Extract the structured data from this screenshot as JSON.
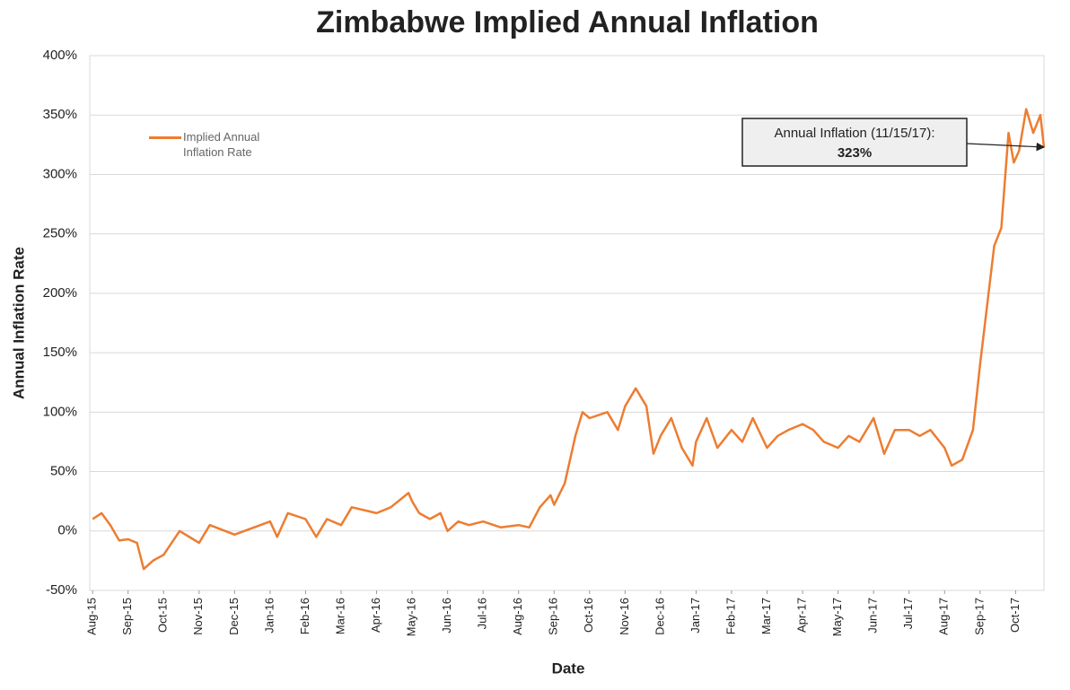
{
  "chart_data": {
    "type": "line",
    "title": "Zimbabwe Implied Annual Inflation",
    "x_label": "Date",
    "y_label": "Annual Inflation Rate",
    "xlim": [
      -0.08,
      26.8
    ],
    "ylim": [
      -50,
      400
    ],
    "xticks": [
      {
        "value": 0,
        "label": "Aug-15"
      },
      {
        "value": 1,
        "label": "Sep-15"
      },
      {
        "value": 2,
        "label": "Oct-15"
      },
      {
        "value": 3,
        "label": "Nov-15"
      },
      {
        "value": 4,
        "label": "Dec-15"
      },
      {
        "value": 5,
        "label": "Jan-16"
      },
      {
        "value": 6,
        "label": "Feb-16"
      },
      {
        "value": 7,
        "label": "Mar-16"
      },
      {
        "value": 8,
        "label": "Apr-16"
      },
      {
        "value": 9,
        "label": "May-16"
      },
      {
        "value": 10,
        "label": "Jun-16"
      },
      {
        "value": 11,
        "label": "Jul-16"
      },
      {
        "value": 12,
        "label": "Aug-16"
      },
      {
        "value": 13,
        "label": "Sep-16"
      },
      {
        "value": 14,
        "label": "Oct-16"
      },
      {
        "value": 15,
        "label": "Nov-16"
      },
      {
        "value": 16,
        "label": "Dec-16"
      },
      {
        "value": 17,
        "label": "Jan-17"
      },
      {
        "value": 18,
        "label": "Feb-17"
      },
      {
        "value": 19,
        "label": "Mar-17"
      },
      {
        "value": 20,
        "label": "Apr-17"
      },
      {
        "value": 21,
        "label": "May-17"
      },
      {
        "value": 22,
        "label": "Jun-17"
      },
      {
        "value": 23,
        "label": "Jul-17"
      },
      {
        "value": 24,
        "label": "Aug-17"
      },
      {
        "value": 25,
        "label": "Sep-17"
      },
      {
        "value": 26,
        "label": "Oct-17"
      }
    ],
    "yticks": [
      {
        "value": -50,
        "label": "-50%"
      },
      {
        "value": 0,
        "label": "0%"
      },
      {
        "value": 50,
        "label": "50%"
      },
      {
        "value": 100,
        "label": "100%"
      },
      {
        "value": 150,
        "label": "150%"
      },
      {
        "value": 200,
        "label": "200%"
      },
      {
        "value": 250,
        "label": "250%"
      },
      {
        "value": 300,
        "label": "300%"
      },
      {
        "value": 350,
        "label": "350%"
      },
      {
        "value": 400,
        "label": "400%"
      }
    ],
    "grid": true,
    "legend": "upper left",
    "x": [
      0,
      0.25,
      0.5,
      0.75,
      1,
      1.25,
      1.44,
      1.7,
      2,
      2.45,
      3,
      3.3,
      4,
      5,
      5.2,
      5.5,
      6,
      6.3,
      6.6,
      7,
      7.3,
      8,
      8.4,
      8.9,
      9,
      9.2,
      9.5,
      9.8,
      10,
      10.3,
      10.6,
      11,
      11.5,
      12,
      12.3,
      12.6,
      12.9,
      13,
      13.3,
      13.6,
      13.8,
      14,
      14.5,
      14.8,
      15,
      15.3,
      15.6,
      15.8,
      16,
      16.3,
      16.6,
      16.9,
      17,
      17.3,
      17.6,
      18,
      18.3,
      18.6,
      19,
      19.3,
      19.6,
      20,
      20.3,
      20.6,
      21,
      21.3,
      21.6,
      22,
      22.3,
      22.6,
      23,
      23.3,
      23.6,
      24,
      24.2,
      24.5,
      24.8,
      25,
      25.2,
      25.4,
      25.6,
      25.8,
      25.95,
      26.1,
      26.3,
      26.5,
      26.7,
      26.8
    ],
    "series": [
      {
        "name": "Implied Annual Inflation Rate",
        "color": "#ed7d31",
        "values": [
          10,
          15,
          5,
          -8,
          -7,
          -10,
          -32,
          -25,
          -20,
          0,
          -10,
          5,
          -3,
          8,
          -5,
          15,
          10,
          -5,
          10,
          5,
          20,
          15,
          20,
          32,
          25,
          15,
          10,
          15,
          0,
          8,
          5,
          8,
          3,
          5,
          3,
          20,
          30,
          22,
          40,
          80,
          100,
          95,
          100,
          85,
          105,
          120,
          105,
          65,
          80,
          95,
          70,
          55,
          75,
          95,
          70,
          85,
          75,
          95,
          70,
          80,
          85,
          90,
          85,
          75,
          70,
          80,
          75,
          95,
          65,
          85,
          85,
          80,
          85,
          70,
          55,
          60,
          85,
          140,
          190,
          240,
          255,
          335,
          310,
          320,
          355,
          335,
          350,
          323
        ]
      }
    ],
    "annotation": {
      "text": "Annual Inflation (11/15/17):",
      "value": 323,
      "label": "323%"
    }
  }
}
